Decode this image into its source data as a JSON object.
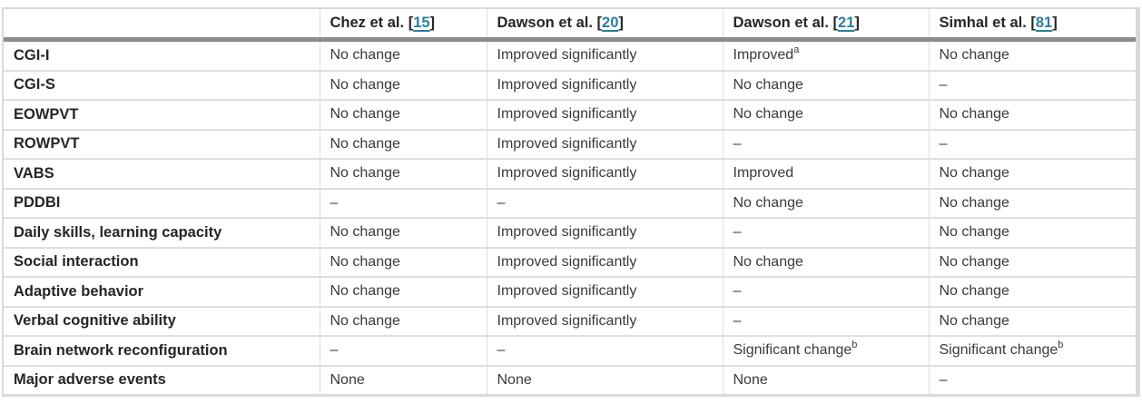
{
  "colors": {
    "citation_link": "#2a7f9f",
    "header_rule": "#8c8c8c",
    "grid_line": "#dcdcdc",
    "header_text": "#262626",
    "body_text": "#3a3a3a"
  },
  "table": {
    "corner_label": "",
    "bracket_open": "[",
    "bracket_close": "]",
    "studies": [
      {
        "name": "Chez et al.",
        "ref": "15"
      },
      {
        "name": "Dawson et al.",
        "ref": "20"
      },
      {
        "name": "Dawson et al.",
        "ref": "21"
      },
      {
        "name": "Simhal et al.",
        "ref": "81"
      }
    ],
    "rows": [
      {
        "label": "CGI-I",
        "cells": [
          "No change",
          "Improved significantly",
          {
            "text": "Improved",
            "sup": "a"
          },
          "No change"
        ]
      },
      {
        "label": "CGI-S",
        "cells": [
          "No change",
          "Improved significantly",
          "No change",
          "–"
        ]
      },
      {
        "label": "EOWPVT",
        "cells": [
          "No change",
          "Improved significantly",
          "No change",
          "No change"
        ]
      },
      {
        "label": "ROWPVT",
        "cells": [
          "No change",
          "Improved significantly",
          "–",
          "–"
        ]
      },
      {
        "label": "VABS",
        "cells": [
          "No change",
          "Improved significantly",
          "Improved",
          "No change"
        ]
      },
      {
        "label": "PDDBI",
        "cells": [
          "–",
          "–",
          "No change",
          "No change"
        ]
      },
      {
        "label": "Daily skills, learning capacity",
        "cells": [
          "No change",
          "Improved significantly",
          "–",
          "No change"
        ]
      },
      {
        "label": "Social interaction",
        "cells": [
          "No change",
          "Improved significantly",
          "No change",
          "No change"
        ]
      },
      {
        "label": "Adaptive behavior",
        "cells": [
          "No change",
          "Improved significantly",
          "–",
          "No change"
        ]
      },
      {
        "label": "Verbal cognitive ability",
        "cells": [
          "No change",
          "Improved significantly",
          "–",
          "No change"
        ]
      },
      {
        "label": "Brain network reconfiguration",
        "cells": [
          "–",
          "–",
          {
            "text": "Significant change",
            "sup": "b"
          },
          {
            "text": "Significant change",
            "sup": "b"
          }
        ]
      },
      {
        "label": "Major adverse events",
        "cells": [
          "None",
          "None",
          "None",
          "–"
        ]
      }
    ]
  }
}
